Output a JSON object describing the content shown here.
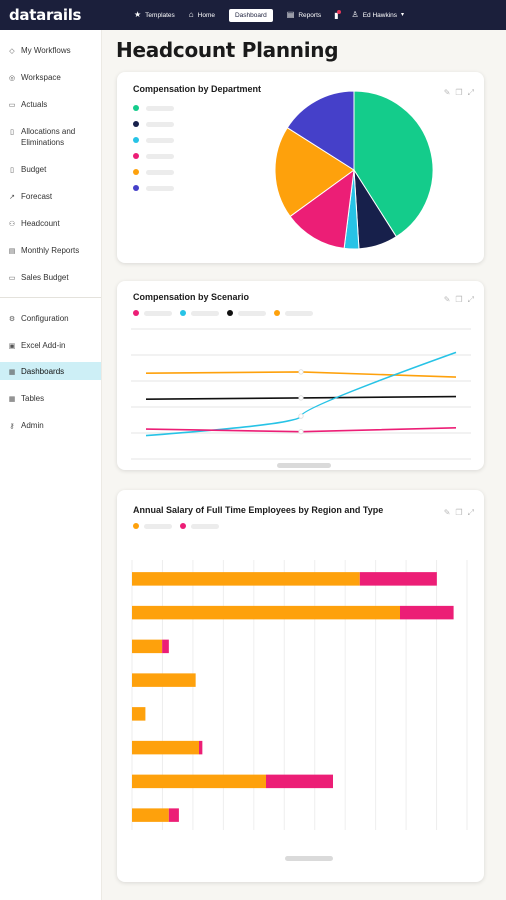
{
  "app": {
    "logo": "datarails",
    "nav": [
      {
        "label": "Templates",
        "icon": "star-icon"
      },
      {
        "label": "Home",
        "icon": "home-icon"
      },
      {
        "label": "Dashboard",
        "icon": "",
        "active": true
      },
      {
        "label": "Reports",
        "icon": "report-icon"
      }
    ],
    "user": "Ed Hawkins"
  },
  "sidebar": {
    "items": [
      {
        "label": "My Workflows",
        "icon": "workflow-icon"
      },
      {
        "label": "Workspace",
        "icon": "workspace-icon"
      },
      {
        "label": "Actuals",
        "icon": "actuals-icon"
      },
      {
        "label": "Allocations and Eliminations",
        "icon": "allocations-icon"
      },
      {
        "label": "Budget",
        "icon": "budget-icon"
      },
      {
        "label": "Forecast",
        "icon": "forecast-icon"
      },
      {
        "label": "Headcount",
        "icon": "headcount-icon"
      },
      {
        "label": "Monthly Reports",
        "icon": "reports-icon"
      },
      {
        "label": "Sales Budget",
        "icon": "sales-icon"
      }
    ],
    "items2": [
      {
        "label": "Configuration",
        "icon": "gear-icon"
      },
      {
        "label": "Excel Add-in",
        "icon": "excel-icon"
      },
      {
        "label": "Dashboards",
        "icon": "dashboard-icon",
        "active": true
      },
      {
        "label": "Tables",
        "icon": "table-icon"
      },
      {
        "label": "Admin",
        "icon": "key-icon"
      }
    ]
  },
  "page": {
    "title": "Headcount Planning"
  },
  "colors": {
    "green": "#14cc8b",
    "navy": "#17204b",
    "cyan": "#27c3e6",
    "pink": "#ec1e76",
    "orange": "#fea10c",
    "indigo": "#4540c9",
    "black": "#111111"
  },
  "cards": {
    "pie": {
      "title": "Compensation by Department"
    },
    "line": {
      "title": "Compensation by Scenario"
    },
    "bars": {
      "title": "Annual Salary of Full Time Employees by Region and Type"
    }
  },
  "chart_data": [
    {
      "type": "pie",
      "title": "Compensation by Department",
      "slices": [
        {
          "value": 41,
          "color": "#14cc8b"
        },
        {
          "value": 8,
          "color": "#17204b"
        },
        {
          "value": 3,
          "color": "#27c3e6"
        },
        {
          "value": 13,
          "color": "#ec1e76"
        },
        {
          "value": 19,
          "color": "#fea10c"
        },
        {
          "value": 16,
          "color": "#4540c9"
        }
      ]
    },
    {
      "type": "line",
      "title": "Compensation by Scenario",
      "x": [
        0,
        1,
        2
      ],
      "ylim": [
        0,
        100
      ],
      "series": [
        {
          "color": "#fea10c",
          "values": [
            66,
            67,
            63
          ]
        },
        {
          "color": "#111111",
          "values": [
            46,
            47,
            48
          ]
        },
        {
          "color": "#27c3e6",
          "values": [
            18,
            33,
            82
          ]
        },
        {
          "color": "#ec1e76",
          "values": [
            23,
            21,
            24
          ]
        }
      ]
    },
    {
      "type": "bar",
      "title": "Annual Salary of Full Time Employees by Region and Type",
      "orientation": "horizontal",
      "stacked": true,
      "xlim": [
        0,
        100
      ],
      "series": [
        {
          "color": "#fea10c",
          "values": [
            68,
            80,
            9,
            19,
            4,
            20,
            40,
            11
          ]
        },
        {
          "color": "#ec1e76",
          "values": [
            23,
            16,
            2,
            0,
            0,
            1,
            20,
            3
          ]
        }
      ]
    }
  ]
}
